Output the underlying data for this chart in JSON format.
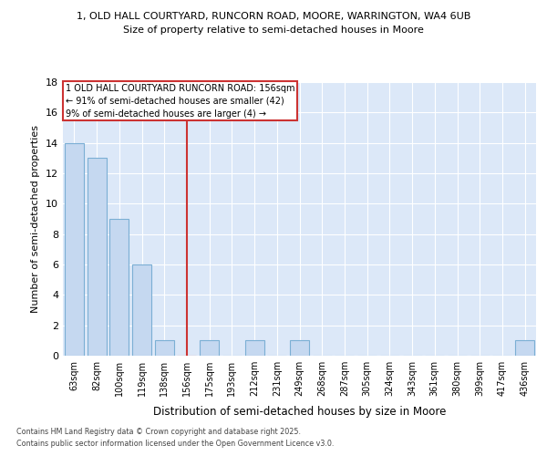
{
  "title1": "1, OLD HALL COURTYARD, RUNCORN ROAD, MOORE, WARRINGTON, WA4 6UB",
  "title2": "Size of property relative to semi-detached houses in Moore",
  "xlabel": "Distribution of semi-detached houses by size in Moore",
  "ylabel": "Number of semi-detached properties",
  "categories": [
    "63sqm",
    "82sqm",
    "100sqm",
    "119sqm",
    "138sqm",
    "156sqm",
    "175sqm",
    "193sqm",
    "212sqm",
    "231sqm",
    "249sqm",
    "268sqm",
    "287sqm",
    "305sqm",
    "324sqm",
    "343sqm",
    "361sqm",
    "380sqm",
    "399sqm",
    "417sqm",
    "436sqm"
  ],
  "values": [
    14,
    13,
    9,
    6,
    1,
    0,
    1,
    0,
    1,
    0,
    1,
    0,
    0,
    0,
    0,
    0,
    0,
    0,
    0,
    0,
    1
  ],
  "highlight_index": 5,
  "highlight_color": "#cc3333",
  "bar_color": "#c5d8f0",
  "bar_edge_color": "#7bafd4",
  "ylim": [
    0,
    18
  ],
  "yticks": [
    0,
    2,
    4,
    6,
    8,
    10,
    12,
    14,
    16,
    18
  ],
  "annotation_title": "1 OLD HALL COURTYARD RUNCORN ROAD: 156sqm",
  "annotation_line1": "← 91% of semi-detached houses are smaller (42)",
  "annotation_line2": "9% of semi-detached houses are larger (4) →",
  "footer1": "Contains HM Land Registry data © Crown copyright and database right 2025.",
  "footer2": "Contains public sector information licensed under the Open Government Licence v3.0.",
  "fig_bg_color": "#ffffff",
  "plot_bg_color": "#dce8f8",
  "grid_color": "#ffffff",
  "annotation_box_color": "#ffffff",
  "annotation_border_color": "#cc3333",
  "vline_color": "#cc3333"
}
